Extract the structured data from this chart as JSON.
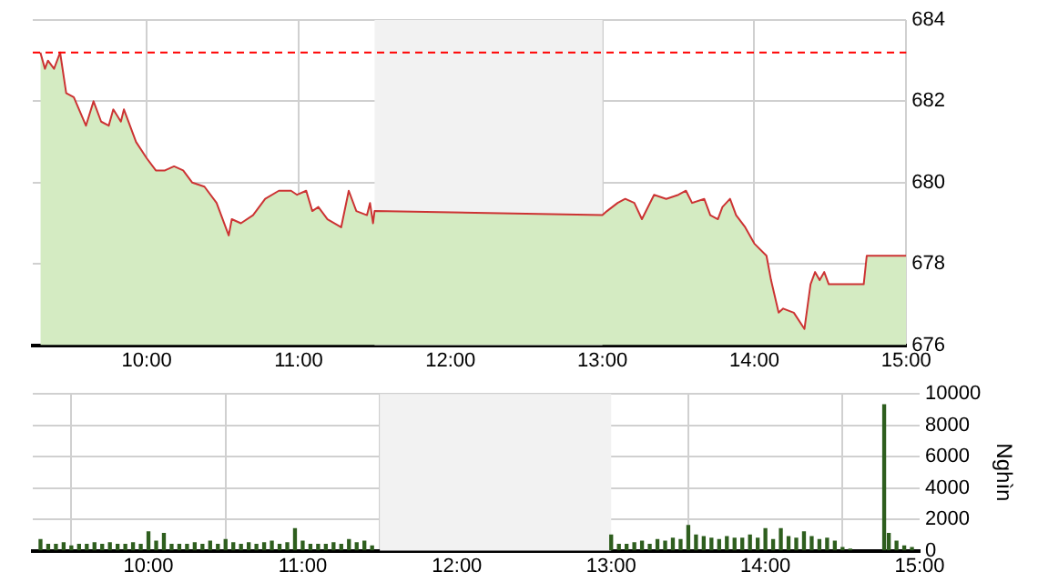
{
  "chart_data": [
    {
      "type": "line",
      "x": [
        9.3,
        9.33,
        9.35,
        9.39,
        9.43,
        9.47,
        9.52,
        9.6,
        9.65,
        9.7,
        9.75,
        9.78,
        9.83,
        9.85,
        9.93,
        10.0,
        10.06,
        10.12,
        10.18,
        10.24,
        10.3,
        10.38,
        10.46,
        10.54,
        10.56,
        10.62,
        10.7,
        10.78,
        10.87,
        10.95,
        10.99,
        11.05,
        11.09,
        11.13,
        11.19,
        11.28,
        11.33,
        11.38,
        11.45,
        11.47,
        11.49,
        11.5,
        13.0,
        13.03,
        13.1,
        13.15,
        13.21,
        13.26,
        13.34,
        13.42,
        13.5,
        13.55,
        13.59,
        13.67,
        13.71,
        13.76,
        13.79,
        13.84,
        13.88,
        13.94,
        14.0,
        14.08,
        14.11,
        14.16,
        14.19,
        14.26,
        14.33,
        14.37,
        14.4,
        14.43,
        14.46,
        14.49,
        14.72,
        14.74,
        15.0
      ],
      "series": [
        {
          "type": "area",
          "color": "#d4ebc2",
          "values": [
            683.2,
            682.8,
            683.0,
            682.8,
            683.2,
            682.2,
            682.1,
            681.4,
            682.0,
            681.5,
            681.4,
            681.8,
            681.5,
            681.8,
            681.0,
            680.6,
            680.3,
            680.3,
            680.4,
            680.3,
            680.0,
            679.9,
            679.5,
            678.7,
            679.1,
            679.0,
            679.2,
            679.6,
            679.8,
            679.8,
            679.7,
            679.8,
            679.3,
            679.4,
            679.1,
            678.9,
            679.8,
            679.3,
            679.2,
            679.5,
            679.0,
            679.3,
            679.2,
            679.3,
            679.5,
            679.6,
            679.5,
            679.1,
            679.7,
            679.6,
            679.7,
            679.8,
            679.5,
            679.6,
            679.2,
            679.1,
            679.4,
            679.6,
            679.2,
            678.9,
            678.5,
            678.2,
            677.6,
            676.8,
            676.9,
            676.8,
            676.4,
            677.5,
            677.8,
            677.6,
            677.8,
            677.5,
            677.5,
            678.2,
            678.2
          ]
        },
        {
          "color": "#cc3333",
          "values": [
            683.2,
            682.8,
            683.0,
            682.8,
            683.2,
            682.2,
            682.1,
            681.4,
            682.0,
            681.5,
            681.4,
            681.8,
            681.5,
            681.8,
            681.0,
            680.6,
            680.3,
            680.3,
            680.4,
            680.3,
            680.0,
            679.9,
            679.5,
            678.7,
            679.1,
            679.0,
            679.2,
            679.6,
            679.8,
            679.8,
            679.7,
            679.8,
            679.3,
            679.4,
            679.1,
            678.9,
            679.8,
            679.3,
            679.2,
            679.5,
            679.0,
            679.3,
            679.2,
            679.3,
            679.5,
            679.6,
            679.5,
            679.1,
            679.7,
            679.6,
            679.7,
            679.8,
            679.5,
            679.6,
            679.2,
            679.1,
            679.4,
            679.6,
            679.2,
            678.9,
            678.5,
            678.2,
            677.6,
            676.8,
            676.9,
            676.8,
            676.4,
            677.5,
            677.8,
            677.6,
            677.8,
            677.5,
            677.5,
            678.2,
            678.2
          ]
        }
      ],
      "xlim": [
        9.25,
        15
      ],
      "xticks": [
        {
          "value": 10,
          "label": "10:00"
        },
        {
          "value": 11,
          "label": "11:00"
        },
        {
          "value": 12,
          "label": "12:00"
        },
        {
          "value": 13,
          "label": "13:00"
        },
        {
          "value": 14,
          "label": "14:00"
        },
        {
          "value": 15,
          "label": "15:00"
        }
      ],
      "ylim": [
        676,
        684
      ],
      "yticks": [
        676,
        678,
        680,
        682,
        684
      ],
      "grid": true,
      "ref_lines": [
        {
          "axis": "y",
          "value": 683.2,
          "color": "#ff0000",
          "line_style": "dashed"
        }
      ],
      "bands": [
        {
          "axis": "x",
          "from": 11.5,
          "to": 13,
          "color": "#f2f2f2"
        }
      ]
    },
    {
      "type": "bar",
      "ylabel": "Nghìn",
      "x": [
        9.3,
        9.35,
        9.4,
        9.45,
        9.5,
        9.55,
        9.6,
        9.65,
        9.7,
        9.75,
        9.8,
        9.85,
        9.9,
        9.95,
        10.0,
        10.05,
        10.1,
        10.15,
        10.2,
        10.25,
        10.3,
        10.35,
        10.4,
        10.45,
        10.5,
        10.55,
        10.6,
        10.65,
        10.7,
        10.75,
        10.8,
        10.85,
        10.9,
        10.95,
        11.0,
        11.05,
        11.1,
        11.15,
        11.2,
        11.25,
        11.3,
        11.35,
        11.4,
        11.45,
        13.0,
        13.05,
        13.1,
        13.15,
        13.2,
        13.25,
        13.3,
        13.35,
        13.4,
        13.45,
        13.5,
        13.55,
        13.6,
        13.65,
        13.7,
        13.75,
        13.8,
        13.85,
        13.9,
        13.95,
        14.0,
        14.05,
        14.1,
        14.15,
        14.2,
        14.25,
        14.3,
        14.35,
        14.4,
        14.45,
        14.5,
        14.55,
        14.77,
        14.8,
        14.85,
        14.9,
        14.95
      ],
      "series": [
        {
          "color": "#2e5e1e",
          "values": [
            700,
            400,
            400,
            500,
            300,
            400,
            400,
            500,
            400,
            500,
            400,
            400,
            500,
            400,
            1200,
            600,
            1100,
            400,
            400,
            400,
            500,
            400,
            600,
            400,
            700,
            500,
            400,
            500,
            400,
            500,
            600,
            400,
            500,
            1400,
            600,
            400,
            400,
            400,
            500,
            400,
            700,
            500,
            600,
            300,
            1000,
            400,
            400,
            500,
            600,
            400,
            700,
            600,
            800,
            700,
            1600,
            1000,
            900,
            800,
            700,
            900,
            800,
            800,
            1000,
            800,
            1400,
            700,
            1400,
            900,
            800,
            1200,
            900,
            700,
            800,
            600,
            200,
            100,
            9300,
            1100,
            600,
            300,
            200
          ]
        }
      ],
      "xlim": [
        9.25,
        15
      ],
      "xticks": [
        {
          "value": 10,
          "label": "10:00"
        },
        {
          "value": 11,
          "label": "11:00"
        },
        {
          "value": 12,
          "label": "12:00"
        },
        {
          "value": 13,
          "label": "13:00"
        },
        {
          "value": 14,
          "label": "14:00"
        },
        {
          "value": 15,
          "label": "15:00"
        }
      ],
      "ylim": [
        0,
        10000
      ],
      "yticks": [
        0,
        2000,
        4000,
        6000,
        8000,
        10000
      ],
      "grid": true,
      "bands": [
        {
          "axis": "x",
          "from": 11.5,
          "to": 13,
          "color": "#f2f2f2"
        }
      ]
    }
  ]
}
